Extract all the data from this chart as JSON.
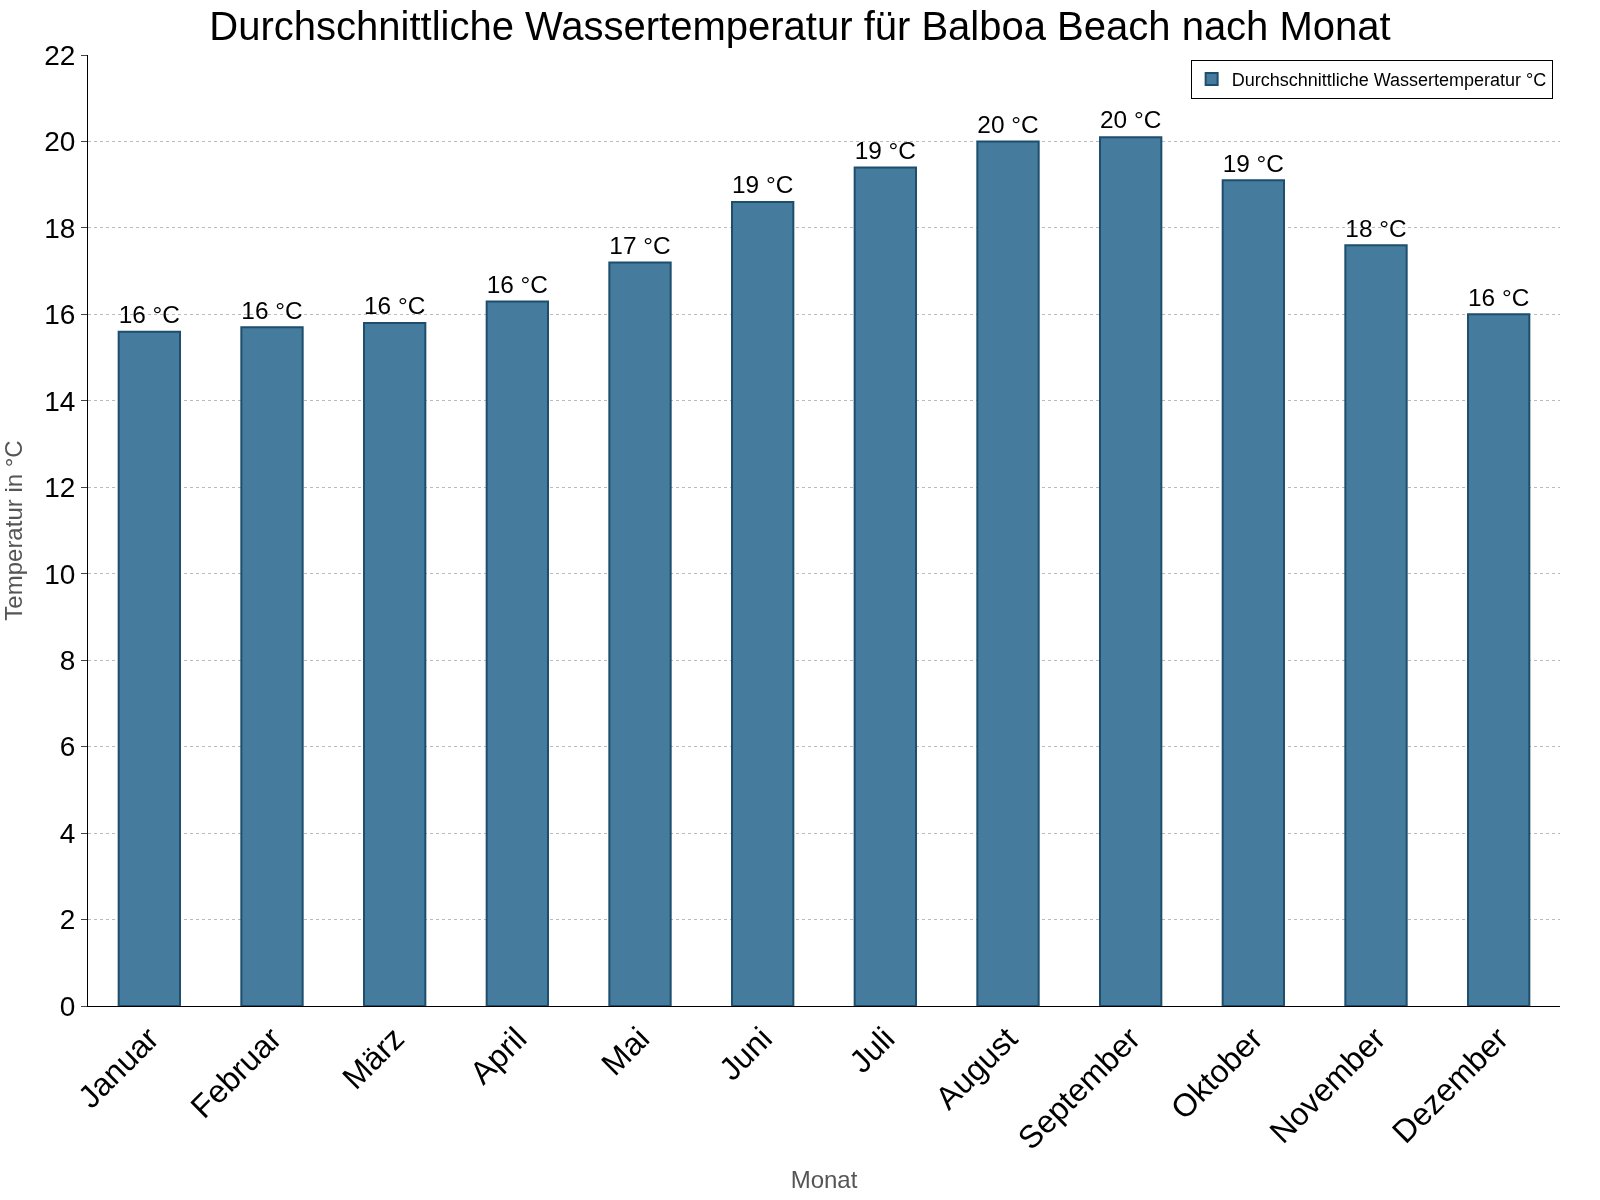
{
  "chart_data": {
    "type": "bar",
    "title": "Durchschnittliche Wassertemperatur für Balboa Beach nach Monat",
    "xlabel": "Monat",
    "ylabel": "Temperatur in °C",
    "categories": [
      "Januar",
      "Februar",
      "März",
      "April",
      "Mai",
      "Juni",
      "Juli",
      "August",
      "September",
      "Oktober",
      "November",
      "Dezember"
    ],
    "series": [
      {
        "name": "Durchschnittliche Wassertemperatur °C",
        "color": "#457b9d",
        "values": [
          15.6,
          15.7,
          15.8,
          16.3,
          17.2,
          18.6,
          19.4,
          20.0,
          20.1,
          19.1,
          17.6,
          16.0
        ],
        "value_labels": [
          "16 °C",
          "16 °C",
          "16 °C",
          "16 °C",
          "17 °C",
          "19 °C",
          "19 °C",
          "20 °C",
          "20 °C",
          "19 °C",
          "18 °C",
          "16 °C"
        ]
      }
    ],
    "ylim": [
      0,
      22
    ],
    "yticks": [
      0,
      2,
      4,
      6,
      8,
      10,
      12,
      14,
      16,
      18,
      20,
      22
    ],
    "grid": "y",
    "legend": "top right"
  }
}
